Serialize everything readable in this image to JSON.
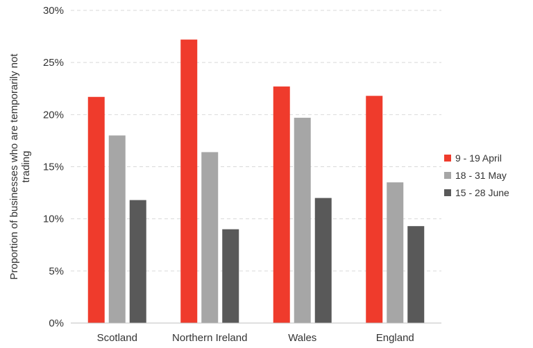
{
  "chart_data": {
    "type": "bar",
    "title": "",
    "xlabel": "",
    "ylabel": "Proportion of businesses who are temporarily not trading",
    "ylim": [
      0,
      30
    ],
    "yticks": [
      "0%",
      "5%",
      "10%",
      "15%",
      "20%",
      "25%",
      "30%"
    ],
    "categories": [
      "Scotland",
      "Northern Ireland",
      "Wales",
      "England"
    ],
    "series": [
      {
        "name": "9 - 19 April",
        "color": "#ef3b2c",
        "values": [
          21.7,
          27.2,
          22.7,
          21.8
        ]
      },
      {
        "name": "18 - 31 May",
        "color": "#a6a6a6",
        "values": [
          18.0,
          16.4,
          19.7,
          13.5
        ]
      },
      {
        "name": "15 - 28 June",
        "color": "#595959",
        "values": [
          11.8,
          9.0,
          12.0,
          9.3
        ]
      }
    ],
    "grid": true,
    "legend_position": "right"
  }
}
